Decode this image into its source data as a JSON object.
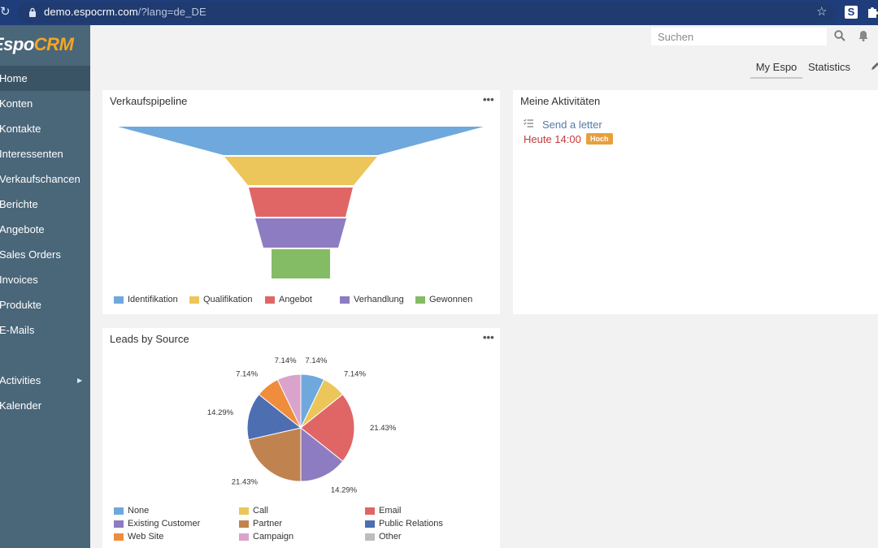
{
  "browser": {
    "url_host": "demo.espocrm.com",
    "url_path": "/?lang=de_DE",
    "extension_label": "S"
  },
  "sidebar": {
    "logo_main": "Espo",
    "logo_accent": "CRM",
    "items": [
      {
        "label": "Home",
        "active": true
      },
      {
        "label": "Konten"
      },
      {
        "label": "Kontakte"
      },
      {
        "label": "Interessenten"
      },
      {
        "label": "Verkaufschancen"
      },
      {
        "label": "Berichte"
      },
      {
        "label": "Angebote"
      },
      {
        "label": "Sales Orders"
      },
      {
        "label": "Invoices"
      },
      {
        "label": "Produkte"
      },
      {
        "label": "E-Mails"
      },
      {
        "label": ""
      },
      {
        "label": "Activities",
        "has_submenu": true
      },
      {
        "label": "Kalender"
      }
    ]
  },
  "header": {
    "search_placeholder": "Suchen",
    "tabs": [
      {
        "label": "My Espo",
        "active": true
      },
      {
        "label": "Statistics"
      }
    ]
  },
  "dashlets": {
    "pipeline": {
      "title": "Verkaufspipeline",
      "menu": "•••",
      "chart_data": {
        "type": "funnel",
        "stages": [
          "Identifikation",
          "Qualifikation",
          "Angebot",
          "Verhandlung",
          "Gewonnen"
        ],
        "colors": [
          "#6fa8dc",
          "#ecc65a",
          "#e06666",
          "#8e7cc3",
          "#84bb65"
        ]
      }
    },
    "activities": {
      "title": "Meine Aktivitäten",
      "item_name": "Send a letter",
      "item_time": "Heute 14:00",
      "item_priority": "Hoch"
    },
    "leads": {
      "title": "Leads by Source",
      "menu": "•••",
      "chart_data": {
        "type": "pie",
        "categories": [
          "None",
          "Call",
          "Email",
          "Existing Customer",
          "Partner",
          "Public Relations",
          "Web Site",
          "Campaign",
          "Other"
        ],
        "colors": [
          "#6fa8dc",
          "#ecc65a",
          "#e06666",
          "#8e7cc3",
          "#c0834f",
          "#4e6eb2",
          "#f08d3c",
          "#d9a3cc",
          "#bdbdbd"
        ],
        "slices": [
          {
            "name": "None",
            "value": 7.14,
            "label": "7.14%"
          },
          {
            "name": "Call",
            "value": 7.14,
            "label": "7.14%"
          },
          {
            "name": "Email",
            "value": 21.43,
            "label": "21.43%"
          },
          {
            "name": "Existing Customer",
            "value": 14.29,
            "label": "14.29%"
          },
          {
            "name": "Partner",
            "value": 21.43,
            "label": "21.43%"
          },
          {
            "name": "Public Relations",
            "value": 14.29,
            "label": "14.29%"
          },
          {
            "name": "Web Site",
            "value": 7.14,
            "label": "7.14%"
          },
          {
            "name": "Campaign",
            "value": 7.14,
            "label": "7.14%"
          }
        ]
      }
    }
  }
}
